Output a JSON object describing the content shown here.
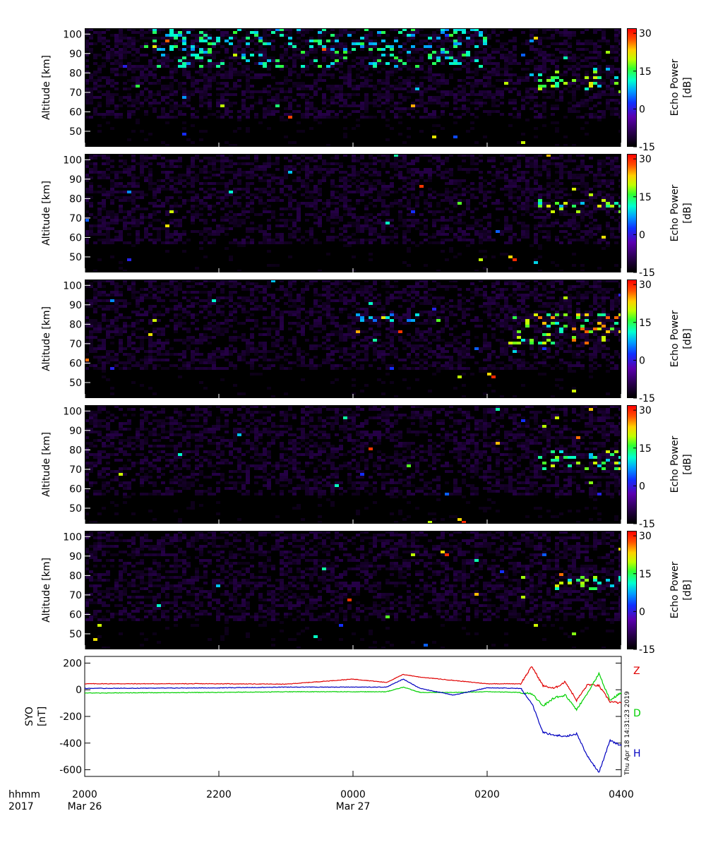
{
  "chart_data": [
    {
      "type": "heatmap",
      "ylabel": "Altitude [km]",
      "ylim": [
        42,
        103
      ],
      "yticks": [
        50,
        60,
        70,
        80,
        90,
        100
      ],
      "colorbar": {
        "label": "Echo Power [dB]",
        "range": [
          -15,
          32
        ],
        "ticks": [
          -15,
          0,
          15,
          30
        ]
      },
      "features": [
        {
          "time": "0230-0400",
          "altitude_km": [
            70,
            82
          ],
          "echo_db": 20,
          "description": "echo layers"
        },
        {
          "time": "2100-0200",
          "altitude_km": [
            82,
            103
          ],
          "echo_db": 15,
          "description": "sporadic echoes"
        }
      ]
    },
    {
      "type": "heatmap",
      "ylabel": "Altitude [km]",
      "ylim": [
        42,
        103
      ],
      "yticks": [
        50,
        60,
        70,
        80,
        90,
        100
      ],
      "colorbar": {
        "label": "Echo Power [dB]",
        "range": [
          -15,
          32
        ],
        "ticks": [
          -15,
          0,
          15,
          30
        ]
      },
      "features": [
        {
          "time": "0240-0400",
          "altitude_km": [
            72,
            80
          ],
          "echo_db": 20,
          "description": "echo layers"
        }
      ]
    },
    {
      "type": "heatmap",
      "ylabel": "Altitude [km]",
      "ylim": [
        42,
        103
      ],
      "yticks": [
        50,
        60,
        70,
        80,
        90,
        100
      ],
      "colorbar": {
        "label": "Echo Power [dB]",
        "range": [
          -15,
          32
        ],
        "ticks": [
          -15,
          0,
          15,
          30
        ]
      },
      "features": [
        {
          "time": "0220-0400",
          "altitude_km": [
            70,
            85
          ],
          "echo_db": 25,
          "description": "echo layers"
        },
        {
          "time": "0000-0100",
          "altitude_km": [
            80,
            85
          ],
          "echo_db": 10,
          "description": "echo layers"
        }
      ]
    },
    {
      "type": "heatmap",
      "ylabel": "Altitude [km]",
      "ylim": [
        42,
        103
      ],
      "yticks": [
        50,
        60,
        70,
        80,
        90,
        100
      ],
      "colorbar": {
        "label": "Echo Power [dB]",
        "range": [
          -15,
          32
        ],
        "ticks": [
          -15,
          0,
          15,
          30
        ]
      },
      "features": [
        {
          "time": "0240-0400",
          "altitude_km": [
            70,
            80
          ],
          "echo_db": 20,
          "description": "echo layers"
        }
      ]
    },
    {
      "type": "heatmap",
      "ylabel": "Altitude [km]",
      "ylim": [
        42,
        103
      ],
      "yticks": [
        50,
        60,
        70,
        80,
        90,
        100
      ],
      "colorbar": {
        "label": "Echo Power [dB]",
        "range": [
          -15,
          32
        ],
        "ticks": [
          -15,
          0,
          15,
          30
        ]
      },
      "features": [
        {
          "time": "0300-0400",
          "altitude_km": [
            72,
            80
          ],
          "echo_db": 20,
          "description": "echo layers"
        }
      ]
    },
    {
      "type": "line",
      "ylabel": "SYO\n[nT]",
      "ylabel_lines": [
        "SYO",
        "[nT]"
      ],
      "ylim": [
        -650,
        250
      ],
      "yticks": [
        200,
        0,
        -200,
        -400,
        -600
      ],
      "xlim": [
        0,
        480
      ],
      "x_unit": "minutes since 2000 Mar 26",
      "x": [
        0,
        60,
        120,
        180,
        240,
        270,
        285,
        300,
        330,
        360,
        390,
        400,
        410,
        420,
        430,
        440,
        450,
        460,
        470,
        480
      ],
      "series": [
        {
          "name": "Z",
          "color": "#e00000",
          "values": [
            45,
            45,
            45,
            42,
            80,
            55,
            115,
            95,
            70,
            45,
            45,
            175,
            30,
            10,
            60,
            -80,
            40,
            30,
            -90,
            -100
          ]
        },
        {
          "name": "D",
          "color": "#00d000",
          "values": [
            -25,
            -22,
            -20,
            -15,
            -15,
            -15,
            20,
            -20,
            -20,
            -15,
            -20,
            -30,
            -120,
            -60,
            -40,
            -150,
            -20,
            120,
            -80,
            -20
          ]
        },
        {
          "name": "H",
          "color": "#0000c0",
          "values": [
            10,
            12,
            14,
            20,
            20,
            20,
            80,
            10,
            -40,
            15,
            10,
            -100,
            -320,
            -340,
            -350,
            -330,
            -500,
            -620,
            -380,
            -420
          ]
        }
      ]
    }
  ],
  "xaxis": {
    "row1_label": "hhmm",
    "row2_label": "2017",
    "ticks": [
      {
        "x": 0,
        "time": "2000",
        "date": "Mar 26"
      },
      {
        "x": 120,
        "time": "2200",
        "date": ""
      },
      {
        "x": 240,
        "time": "0000",
        "date": "Mar 27"
      },
      {
        "x": 360,
        "time": "0200",
        "date": ""
      },
      {
        "x": 480,
        "time": "0400",
        "date": ""
      }
    ]
  },
  "timestamp": "Thu Apr 18 14:31:23 2019"
}
